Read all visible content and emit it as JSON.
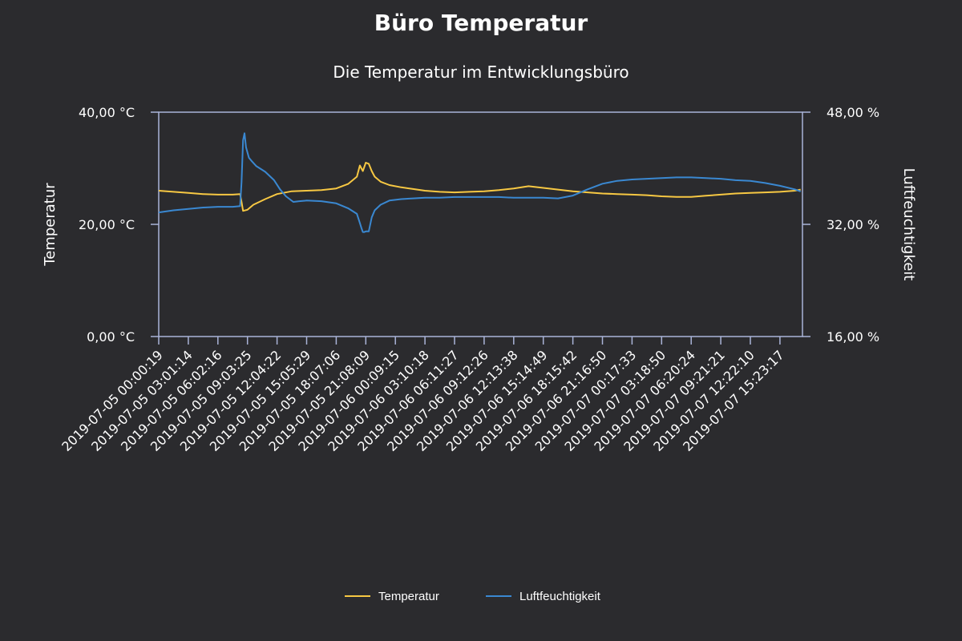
{
  "chart_data": {
    "type": "line",
    "title": "Büro Temperatur",
    "subtitle": "Die Temperatur im Entwicklungsbüro",
    "xlabel": "",
    "y_left": {
      "label": "Temperatur",
      "range": [
        0,
        40
      ],
      "ticks": [
        "0,00 °C",
        "20,00 °C",
        "40,00 °C"
      ]
    },
    "y_right": {
      "label": "Luftfeuchtigkeit",
      "range": [
        16,
        48
      ],
      "ticks": [
        "16,00 %",
        "32,00 %",
        "48,00 %"
      ]
    },
    "x_tick_labels": [
      "2019-07-05 00:00:19",
      "2019-07-05 03:01:14",
      "2019-07-05 06:02:16",
      "2019-07-05 09:03:25",
      "2019-07-05 12:04:22",
      "2019-07-05 15:05:29",
      "2019-07-05 18:07:06",
      "2019-07-05 21:08:09",
      "2019-07-06 00:09:15",
      "2019-07-06 03:10:18",
      "2019-07-06 06:11:27",
      "2019-07-06 09:12:26",
      "2019-07-06 12:13:38",
      "2019-07-06 15:14:49",
      "2019-07-06 18:15:42",
      "2019-07-06 21:16:50",
      "2019-07-07 00:17:33",
      "2019-07-07 03:18:50",
      "2019-07-07 06:20:24",
      "2019-07-07 09:21:21",
      "2019-07-07 12:22:10",
      "2019-07-07 15:23:17"
    ],
    "x_end": 21.7,
    "series": [
      {
        "name": "Temperatur",
        "axis": "left",
        "color": "#f7c843",
        "x": [
          0,
          0.5,
          1,
          1.5,
          2,
          2.5,
          2.75,
          2.8,
          2.85,
          3.0,
          3.2,
          3.6,
          4.0,
          4.5,
          5.0,
          5.5,
          6.0,
          6.4,
          6.7,
          6.8,
          6.9,
          7.0,
          7.1,
          7.2,
          7.3,
          7.5,
          7.8,
          8.2,
          8.6,
          9.0,
          9.5,
          10,
          10.5,
          11,
          11.5,
          12,
          12.5,
          13.0,
          13.5,
          14,
          14.5,
          15,
          15.5,
          16,
          16.5,
          17,
          17.5,
          18,
          18.5,
          19,
          19.5,
          20,
          20.5,
          21,
          21.5,
          21.7
        ],
        "y": [
          26.0,
          25.8,
          25.6,
          25.4,
          25.3,
          25.3,
          25.4,
          24.0,
          22.4,
          22.6,
          23.5,
          24.5,
          25.4,
          25.9,
          26.0,
          26.1,
          26.4,
          27.2,
          28.5,
          30.5,
          29.5,
          31.0,
          30.8,
          29.5,
          28.5,
          27.6,
          27.0,
          26.6,
          26.3,
          26.0,
          25.8,
          25.7,
          25.8,
          25.9,
          26.1,
          26.4,
          26.8,
          26.5,
          26.2,
          25.9,
          25.7,
          25.5,
          25.4,
          25.3,
          25.2,
          25.0,
          24.9,
          24.9,
          25.1,
          25.3,
          25.5,
          25.6,
          25.7,
          25.8,
          26.0,
          26.2
        ]
      },
      {
        "name": "Luftfeuchtigkeit",
        "axis": "right",
        "color": "#3a88d1",
        "x": [
          0,
          0.5,
          1,
          1.5,
          2,
          2.5,
          2.75,
          2.8,
          2.85,
          2.9,
          2.95,
          3.05,
          3.15,
          3.3,
          3.6,
          3.9,
          4.1,
          4.3,
          4.55,
          4.75,
          5.0,
          5.5,
          6.0,
          6.4,
          6.7,
          6.8,
          6.85,
          6.9,
          6.95,
          7.0,
          7.1,
          7.2,
          7.3,
          7.5,
          7.8,
          8.2,
          8.6,
          9.0,
          9.5,
          10,
          10.5,
          11,
          11.5,
          12,
          12.5,
          13.0,
          13.5,
          14,
          14.5,
          15,
          15.5,
          16,
          16.5,
          17,
          17.5,
          18,
          18.5,
          19,
          19.5,
          20,
          20.5,
          21,
          21.5,
          21.7
        ],
        "y": [
          33.7,
          34.0,
          34.2,
          34.4,
          34.5,
          34.5,
          34.6,
          38.0,
          44.0,
          45.0,
          43.0,
          41.5,
          41.0,
          40.3,
          39.5,
          38.3,
          37.0,
          36.0,
          35.2,
          35.3,
          35.4,
          35.3,
          35.0,
          34.3,
          33.5,
          32.2,
          31.5,
          30.9,
          30.9,
          31.0,
          31.0,
          33.0,
          34.0,
          34.8,
          35.4,
          35.6,
          35.7,
          35.8,
          35.8,
          35.9,
          35.9,
          35.9,
          35.9,
          35.8,
          35.8,
          35.8,
          35.7,
          36.1,
          37.0,
          37.8,
          38.2,
          38.4,
          38.5,
          38.6,
          38.7,
          38.7,
          38.6,
          38.5,
          38.3,
          38.2,
          37.9,
          37.5,
          37.0,
          36.7
        ]
      }
    ],
    "grid": false,
    "legend_position": "bottom-center"
  }
}
